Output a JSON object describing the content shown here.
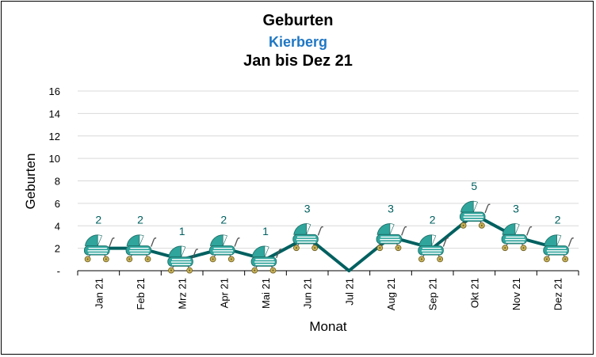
{
  "title": "Geburten",
  "subtitle": "Kierberg",
  "period": "Jan bis Dez 21",
  "colors": {
    "line": "#006060",
    "label": "#006060",
    "grid": "#d9d9d9",
    "subtitle": "#1f77c4",
    "stroller_body": "#2fa59c",
    "stroller_stripe": "#ffffff",
    "wheel": "#c9b35a"
  },
  "marker_icon": "baby-stroller-icon",
  "chart_data": {
    "type": "line",
    "title": "Geburten",
    "subtitle": "Kierberg",
    "period": "Jan bis Dez 21",
    "xlabel": "Monat",
    "ylabel": "Geburten",
    "categories": [
      "Jan 21",
      "Feb 21",
      "Mrz 21",
      "Apr 21",
      "Mai 21",
      "Jun 21",
      "Jul 21",
      "Aug 21",
      "Sep 21",
      "Okt 21",
      "Nov 21",
      "Dez 21"
    ],
    "values": [
      2,
      2,
      1,
      2,
      1,
      3,
      0,
      3,
      2,
      5,
      3,
      2
    ],
    "data_labels": [
      "2",
      "2",
      "1",
      "2",
      "1",
      "3",
      "",
      "3",
      "2",
      "5",
      "3",
      "2"
    ],
    "ylim": [
      0,
      16
    ],
    "yticks": [
      0,
      2,
      4,
      6,
      8,
      10,
      12,
      14,
      16
    ],
    "ytick_labels": [
      "-",
      "2",
      "4",
      "6",
      "8",
      "10",
      "12",
      "14",
      "16"
    ],
    "grid": true,
    "legend": "none"
  }
}
